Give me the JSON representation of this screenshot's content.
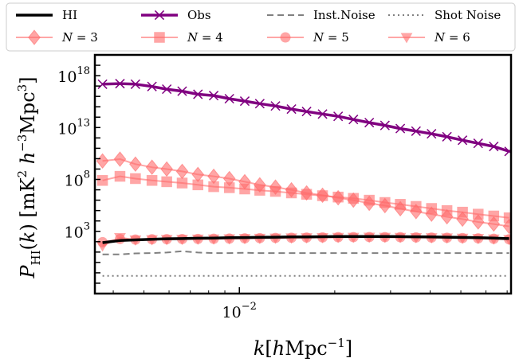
{
  "chart_data": {
    "type": "line",
    "title": "",
    "xlabel": "k [h Mpc⁻¹]",
    "ylabel": "P_HI(k) [mK² h⁻³ Mpc³]",
    "xscale": "log",
    "yscale": "log",
    "xlim": [
      0.0035,
      0.072
    ],
    "ylim": [
      0.001,
      1e+20
    ],
    "x_tick_labels": [
      {
        "value": 0.01,
        "label": "10⁻²",
        "base": "10",
        "exp": "−2"
      }
    ],
    "y_tick_labels": [
      {
        "value": 1000.0,
        "label": "10³",
        "base": "10",
        "exp": "3"
      },
      {
        "value": 100000000.0,
        "label": "10⁸",
        "base": "10",
        "exp": "8"
      },
      {
        "value": 10000000000000.0,
        "label": "10¹³",
        "base": "10",
        "exp": "13"
      },
      {
        "value": 1e+18,
        "label": "10¹⁸",
        "base": "10",
        "exp": "18"
      }
    ],
    "grid": false,
    "legend_position": "top",
    "legend_columns": 4,
    "x": [
      0.0037,
      0.0042,
      0.0047,
      0.0053,
      0.0059,
      0.0066,
      0.0074,
      0.0083,
      0.0093,
      0.0104,
      0.0116,
      0.013,
      0.0146,
      0.0163,
      0.0183,
      0.0205,
      0.0229,
      0.0257,
      0.0288,
      0.0322,
      0.0361,
      0.0404,
      0.0452,
      0.0506,
      0.0567,
      0.0635,
      0.071
    ],
    "series": [
      {
        "name": "HI",
        "label_parts": [
          {
            "text": "HI",
            "italic": false
          }
        ],
        "color": "#000000",
        "style": "solid",
        "marker": "none",
        "linewidth": 3.5,
        "values": [
          80,
          130,
          150,
          170,
          190,
          200,
          215,
          225,
          240,
          250,
          262,
          272,
          285,
          295,
          305,
          315,
          318,
          320,
          315,
          310,
          300,
          290,
          275,
          260,
          240,
          220,
          200
        ]
      },
      {
        "name": "Obs",
        "label_parts": [
          {
            "text": "Obs",
            "italic": false
          }
        ],
        "color": "#800080",
        "style": "solid",
        "marker": "x",
        "linewidth": 3.5,
        "values": [
          1.5e+17,
          1.7e+17,
          1.5e+17,
          9e+16,
          5e+16,
          3.2e+16,
          1.6e+16,
          1.2e+16,
          6000000000000000.0,
          3500000000000000.0,
          2000000000000000.0,
          1200000000000000.0,
          600000000000000.0,
          350000000000000.0,
          200000000000000.0,
          120000000000000.0,
          60000000000000.0,
          30000000000000.0,
          16000000000000.0,
          8000000000000.0,
          4500000000000.0,
          2500000000000.0,
          1300000000000.0,
          600000000000.0,
          300000000000.0,
          150000000000.0,
          50000000000.0
        ]
      },
      {
        "name": "Inst.Noise",
        "label_parts": [
          {
            "text": "Inst.Noise",
            "italic": false
          }
        ],
        "color": "#808080",
        "style": "dashed",
        "marker": "none",
        "linewidth": 2,
        "values": [
          6,
          6,
          7.5,
          8,
          9,
          12,
          9,
          8,
          8,
          8.5,
          8,
          8,
          8,
          8,
          8,
          8,
          8,
          8,
          8,
          8,
          8,
          8,
          8,
          8,
          8,
          8,
          8
        ]
      },
      {
        "name": "Shot Noise",
        "label_parts": [
          {
            "text": "Shot Noise",
            "italic": false
          }
        ],
        "color": "#808080",
        "style": "dotted",
        "marker": "none",
        "linewidth": 2,
        "values": [
          0.05,
          0.05,
          0.05,
          0.05,
          0.05,
          0.05,
          0.05,
          0.05,
          0.05,
          0.05,
          0.05,
          0.05,
          0.05,
          0.05,
          0.05,
          0.05,
          0.05,
          0.05,
          0.05,
          0.05,
          0.05,
          0.05,
          0.05,
          0.05,
          0.05,
          0.05,
          0.05
        ]
      },
      {
        "name": "N=3",
        "label_parts": [
          {
            "text": "N",
            "italic": true
          },
          {
            "text": " = 3",
            "italic": false
          }
        ],
        "color": "#ff6b6b",
        "style": "solid",
        "marker": "diamond",
        "linewidth": 2,
        "alpha": 0.6,
        "values": [
          6000000000.0,
          9000000000.0,
          3000000000.0,
          1500000000.0,
          1000000000.0,
          600000000.0,
          300000000.0,
          200000000.0,
          120000000.0,
          60000000.0,
          30000000.0,
          18000000.0,
          10000000.0,
          5000000.0,
          3000000.0,
          1700000.0,
          1000000.0,
          500000.0,
          300000.0,
          150000.0,
          80000.0,
          45000.0,
          25000.0,
          15000.0,
          8000.0,
          5000.0,
          3000.0
        ]
      },
      {
        "name": "N=4",
        "label_parts": [
          {
            "text": "N",
            "italic": true
          },
          {
            "text": " = 4",
            "italic": false
          }
        ],
        "color": "#ff6b6b",
        "style": "solid",
        "marker": "square",
        "linewidth": 2,
        "alpha": 0.6,
        "values": [
          80000000.0,
          200000000.0,
          120000000.0,
          80000000.0,
          60000000.0,
          45000000.0,
          30000000.0,
          20000000.0,
          16000000.0,
          12000000.0,
          9000000.0,
          7000000.0,
          5000000.0,
          3700000.0,
          2700000.0,
          2000000.0,
          1500000.0,
          1000000.0,
          600000.0,
          400000.0,
          250000.0,
          160000.0,
          100000.0,
          70000.0,
          45000.0,
          30000.0,
          20000.0
        ]
      },
      {
        "name": "N=5",
        "label_parts": [
          {
            "text": "N",
            "italic": true
          },
          {
            "text": " = 5",
            "italic": false
          }
        ],
        "color": "#ff6b6b",
        "style": "solid",
        "marker": "circle",
        "linewidth": 2,
        "alpha": 0.6,
        "values": [
          90,
          180,
          160,
          170,
          175,
          180,
          185,
          190,
          200,
          210,
          220,
          230,
          240,
          250,
          260,
          270,
          275,
          280,
          275,
          270,
          260,
          250,
          240,
          225,
          210,
          190,
          170
        ]
      },
      {
        "name": "N=6",
        "label_parts": [
          {
            "text": "N",
            "italic": true
          },
          {
            "text": " = 6",
            "italic": false
          }
        ],
        "color": "#ff6b6b",
        "style": "solid",
        "marker": "triangle-down",
        "linewidth": 2,
        "alpha": 0.6,
        "values": [
          40,
          250,
          150,
          160,
          165,
          170,
          180,
          185,
          195,
          205,
          215,
          225,
          235,
          245,
          255,
          265,
          270,
          275,
          270,
          265,
          255,
          245,
          235,
          220,
          205,
          185,
          165
        ]
      }
    ]
  }
}
